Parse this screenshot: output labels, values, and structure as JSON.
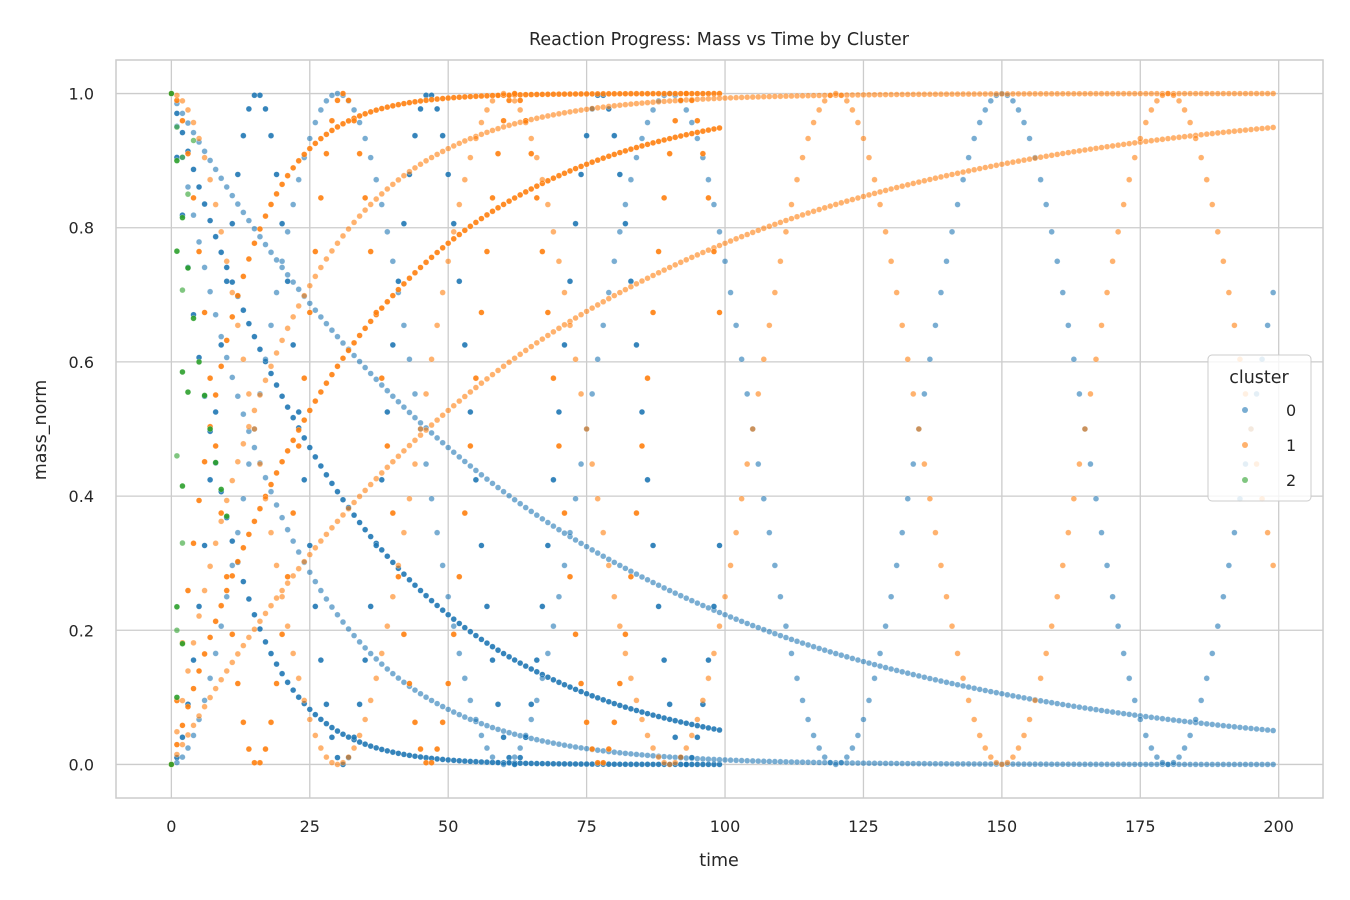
{
  "chart_data": {
    "type": "scatter",
    "title": "Reaction Progress: Mass vs Time by Cluster",
    "xlabel": "time",
    "ylabel": "mass_norm",
    "xlim": [
      -10,
      208
    ],
    "ylim": [
      -0.05,
      1.05
    ],
    "xticks": [
      "0",
      "25",
      "50",
      "75",
      "100",
      "125",
      "150",
      "175",
      "200"
    ],
    "xtick_values": [
      0,
      25,
      50,
      75,
      100,
      125,
      150,
      175,
      200
    ],
    "yticks": [
      "0.0",
      "0.2",
      "0.4",
      "0.6",
      "0.8",
      "1.0"
    ],
    "ytick_values": [
      0,
      0.2,
      0.4,
      0.6,
      0.8,
      1.0
    ],
    "grid": true,
    "legend": {
      "title": "cluster",
      "position": "right",
      "entries": [
        "0",
        "1",
        "2"
      ]
    },
    "colors": {
      "0": "#1f77b4",
      "1": "#ff7f0e",
      "2": "#2ca02c"
    },
    "series": [
      {
        "cluster": "0",
        "kind": "decay",
        "x_start": 0,
        "x_end": 99,
        "rate": 0.03,
        "alpha": 0.9
      },
      {
        "cluster": "0",
        "kind": "decay",
        "x_start": 0,
        "x_end": 99,
        "rate": 0.1,
        "alpha": 0.9
      },
      {
        "cluster": "0",
        "kind": "decay",
        "x_start": 0,
        "x_end": 199,
        "rate": 0.015,
        "alpha": 0.6
      },
      {
        "cluster": "0",
        "kind": "decay",
        "x_start": 0,
        "x_end": 199,
        "rate": 0.05,
        "alpha": 0.6
      },
      {
        "cluster": "0",
        "kind": "sin2",
        "x_start": 0,
        "x_end": 99,
        "period": 31,
        "alpha": 0.9
      },
      {
        "cluster": "0",
        "kind": "sin2",
        "x_start": 0,
        "x_end": 199,
        "period": 60,
        "alpha": 0.6
      },
      {
        "cluster": "1",
        "kind": "growth",
        "x_start": 0,
        "x_end": 99,
        "rate": 0.03,
        "alpha": 0.9
      },
      {
        "cluster": "1",
        "kind": "growth",
        "x_start": 0,
        "x_end": 99,
        "rate": 0.1,
        "alpha": 0.9
      },
      {
        "cluster": "1",
        "kind": "growth",
        "x_start": 0,
        "x_end": 199,
        "rate": 0.015,
        "alpha": 0.6
      },
      {
        "cluster": "1",
        "kind": "growth",
        "x_start": 0,
        "x_end": 199,
        "rate": 0.05,
        "alpha": 0.6
      },
      {
        "cluster": "1",
        "kind": "cos2",
        "x_start": 0,
        "x_end": 99,
        "period": 31,
        "alpha": 0.9
      },
      {
        "cluster": "1",
        "kind": "cos2",
        "x_start": 0,
        "x_end": 199,
        "period": 60,
        "alpha": 0.6
      },
      {
        "cluster": "2",
        "kind": "points",
        "alpha": 0.9,
        "points": [
          [
            0,
            1.0
          ],
          [
            1,
            0.9
          ],
          [
            2,
            0.815
          ],
          [
            3,
            0.74
          ],
          [
            4,
            0.665
          ],
          [
            5,
            0.6
          ],
          [
            6,
            0.55
          ],
          [
            7,
            0.5
          ],
          [
            8,
            0.45
          ],
          [
            9,
            0.41
          ],
          [
            10,
            0.37
          ],
          [
            1,
            0.765
          ],
          [
            2,
            0.585
          ],
          [
            3,
            0.555
          ],
          [
            2,
            0.415
          ],
          [
            1,
            0.235
          ],
          [
            2,
            0.18
          ],
          [
            1,
            0.1
          ],
          [
            0,
            0.0
          ]
        ]
      },
      {
        "cluster": "2",
        "kind": "points",
        "alpha": 0.6,
        "points": [
          [
            1,
            0.95
          ],
          [
            2,
            0.905
          ],
          [
            3,
            0.85
          ],
          [
            4,
            0.93
          ],
          [
            2,
            0.707
          ],
          [
            1,
            0.46
          ],
          [
            2,
            0.33
          ],
          [
            1,
            0.2
          ]
        ]
      }
    ]
  }
}
